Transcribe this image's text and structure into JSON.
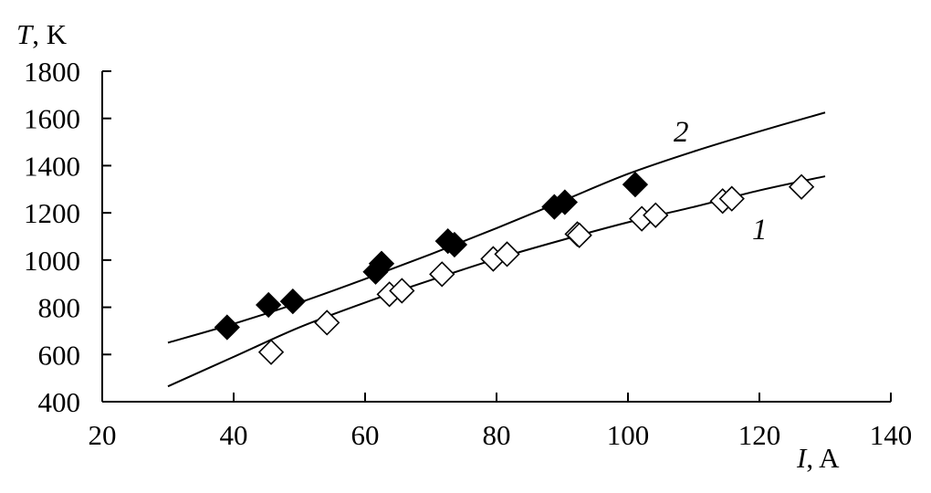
{
  "chart_data": {
    "type": "scatter",
    "y_axis_title": {
      "symbol": "T",
      "unit": ", K"
    },
    "x_axis_title": {
      "symbol": "I",
      "unit": ", A"
    },
    "xlim": [
      20,
      140
    ],
    "ylim": [
      400,
      1800
    ],
    "x_ticks": [
      20,
      40,
      60,
      80,
      100,
      120,
      140
    ],
    "y_ticks": [
      400,
      600,
      800,
      1000,
      1200,
      1400,
      1600,
      1800
    ],
    "grid": false,
    "series": [
      {
        "name": "1",
        "marker": "diamond-open",
        "points": [
          [
            45.7,
            610
          ],
          [
            54.2,
            735
          ],
          [
            63.7,
            855
          ],
          [
            65.6,
            870
          ],
          [
            71.7,
            940
          ],
          [
            79.5,
            1005
          ],
          [
            81.6,
            1025
          ],
          [
            92.3,
            1110
          ],
          [
            92.6,
            1105
          ],
          [
            102.1,
            1175
          ],
          [
            104.2,
            1190
          ],
          [
            114.4,
            1250
          ],
          [
            115.8,
            1260
          ],
          [
            126.4,
            1310
          ]
        ],
        "fit": [
          [
            30,
            465
          ],
          [
            40,
            590
          ],
          [
            50,
            715
          ],
          [
            60,
            820
          ],
          [
            70,
            915
          ],
          [
            80,
            1005
          ],
          [
            90,
            1085
          ],
          [
            100,
            1160
          ],
          [
            110,
            1225
          ],
          [
            120,
            1295
          ],
          [
            130,
            1355
          ]
        ]
      },
      {
        "name": "2",
        "marker": "diamond-filled",
        "points": [
          [
            39.0,
            715
          ],
          [
            45.3,
            810
          ],
          [
            49.0,
            825
          ],
          [
            61.6,
            950
          ],
          [
            62.5,
            985
          ],
          [
            72.6,
            1080
          ],
          [
            73.6,
            1065
          ],
          [
            88.8,
            1225
          ],
          [
            90.4,
            1245
          ],
          [
            101.1,
            1320
          ]
        ],
        "fit": [
          [
            30,
            650
          ],
          [
            40,
            730
          ],
          [
            50,
            820
          ],
          [
            60,
            920
          ],
          [
            70,
            1025
          ],
          [
            80,
            1135
          ],
          [
            90,
            1250
          ],
          [
            100,
            1365
          ],
          [
            110,
            1460
          ],
          [
            120,
            1545
          ],
          [
            130,
            1625
          ]
        ]
      }
    ]
  }
}
